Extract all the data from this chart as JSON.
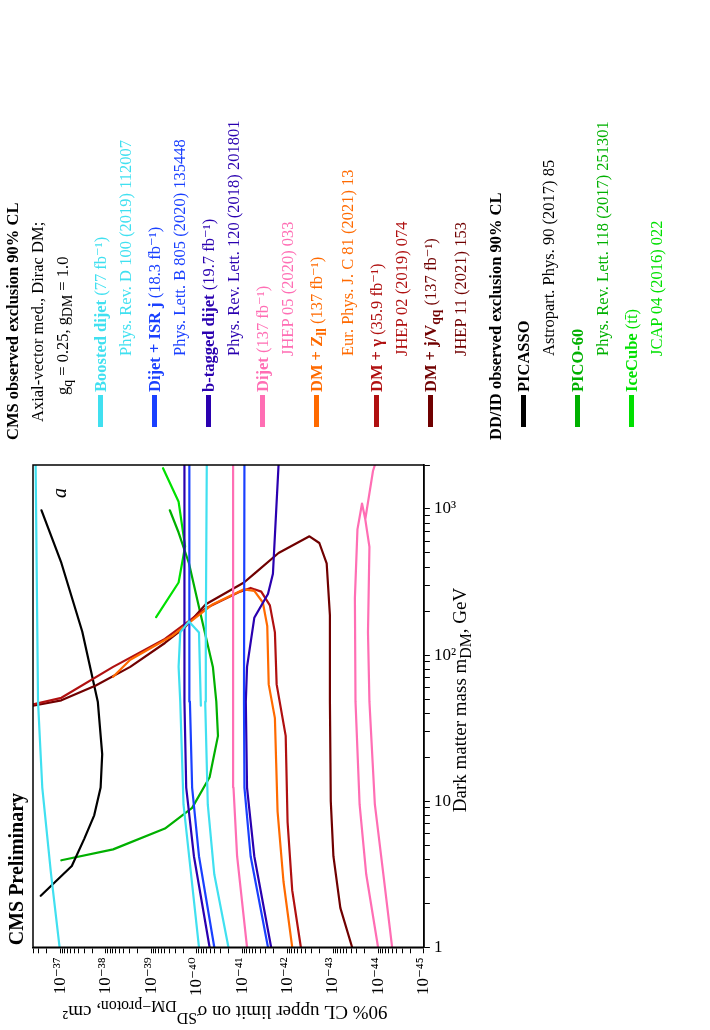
{
  "chart_data": {
    "type": "line",
    "log": "xy",
    "legend": "right",
    "legend_title": "CMS observed exclusion 90% CL\nAxial-vector med., Dirac DM;\ng$_{q}$ = 0.25, g$_{DM}$ = 1.0",
    "xlabel": "90% CL upper limit on σ$^{SD}$$_{DM−proton}$, cm²",
    "ylabel": "Dark matter mass m$_{DM}$, GeV",
    "annotations": [
      "CMS Preliminary",
      "a",
      "DD/ID observed exclusion 90% CL"
    ],
    "xlim": [
      4e-37,
      1e-45
    ],
    "ylim": [
      1,
      2000
    ],
    "xticks": [
      {
        "value": 1e-45,
        "label": "10⁻⁴⁵"
      },
      {
        "value": 2e-45,
        "label": null
      },
      {
        "value": 3e-45,
        "label": null
      },
      {
        "value": 4e-45,
        "label": null
      },
      {
        "value": 5e-45,
        "label": null
      },
      {
        "value": 6e-45,
        "label": null
      },
      {
        "value": 7e-45,
        "label": null
      },
      {
        "value": 8e-45,
        "label": null
      },
      {
        "value": 9e-45,
        "label": null
      },
      {
        "value": 1e-44,
        "label": "10⁻⁴⁴"
      },
      {
        "value": 2e-44,
        "label": null
      },
      {
        "value": 3e-44,
        "label": null
      },
      {
        "value": 4e-44,
        "label": null
      },
      {
        "value": 5e-44,
        "label": null
      },
      {
        "value": 6e-44,
        "label": null
      },
      {
        "value": 7e-44,
        "label": null
      },
      {
        "value": 8e-44,
        "label": null
      },
      {
        "value": 9e-44,
        "label": null
      },
      {
        "value": 1e-43,
        "label": "10⁻⁴³"
      },
      {
        "value": 2e-43,
        "label": null
      },
      {
        "value": 3e-43,
        "label": null
      },
      {
        "value": 4e-43,
        "label": null
      },
      {
        "value": 5e-43,
        "label": null
      },
      {
        "value": 6e-43,
        "label": null
      },
      {
        "value": 7e-43,
        "label": null
      },
      {
        "value": 8e-43,
        "label": null
      },
      {
        "value": 9e-43,
        "label": null
      },
      {
        "value": 1e-42,
        "label": "10⁻⁴²"
      },
      {
        "value": 2e-42,
        "label": null
      },
      {
        "value": 3e-42,
        "label": null
      },
      {
        "value": 4e-42,
        "label": null
      },
      {
        "value": 5e-42,
        "label": null
      },
      {
        "value": 6e-42,
        "label": null
      },
      {
        "value": 7e-42,
        "label": null
      },
      {
        "value": 8e-42,
        "label": null
      },
      {
        "value": 9e-42,
        "label": null
      },
      {
        "value": 1e-41,
        "label": "10⁻⁴¹"
      },
      {
        "value": 2e-41,
        "label": null
      },
      {
        "value": 3e-41,
        "label": null
      },
      {
        "value": 4e-41,
        "label": null
      },
      {
        "value": 5e-41,
        "label": null
      },
      {
        "value": 6e-41,
        "label": null
      },
      {
        "value": 7e-41,
        "label": null
      },
      {
        "value": 8e-41,
        "label": null
      },
      {
        "value": 9e-41,
        "label": null
      },
      {
        "value": 1e-40,
        "label": "10⁻⁴⁰"
      },
      {
        "value": 2e-40,
        "label": null
      },
      {
        "value": 3e-40,
        "label": null
      },
      {
        "value": 4e-40,
        "label": null
      },
      {
        "value": 5e-40,
        "label": null
      },
      {
        "value": 6e-40,
        "label": null
      },
      {
        "value": 7e-40,
        "label": null
      },
      {
        "value": 8e-40,
        "label": null
      },
      {
        "value": 9e-40,
        "label": null
      },
      {
        "value": 1e-39,
        "label": "10⁻³⁹"
      },
      {
        "value": 2e-39,
        "label": null
      },
      {
        "value": 3e-39,
        "label": null
      },
      {
        "value": 4e-39,
        "label": null
      },
      {
        "value": 5e-39,
        "label": null
      },
      {
        "value": 6e-39,
        "label": null
      },
      {
        "value": 7e-39,
        "label": null
      },
      {
        "value": 8e-39,
        "label": null
      },
      {
        "value": 9e-39,
        "label": null
      },
      {
        "value": 1e-38,
        "label": "10⁻³⁸"
      },
      {
        "value": 2e-38,
        "label": null
      },
      {
        "value": 3e-38,
        "label": null
      },
      {
        "value": 4e-38,
        "label": null
      },
      {
        "value": 5e-38,
        "label": null
      },
      {
        "value": 6e-38,
        "label": null
      },
      {
        "value": 7e-38,
        "label": null
      },
      {
        "value": 8e-38,
        "label": null
      },
      {
        "value": 9e-38,
        "label": null
      },
      {
        "value": 1e-37,
        "label": "10⁻³⁷"
      },
      {
        "value": 2e-37,
        "label": null
      },
      {
        "value": 3e-37,
        "label": null
      },
      {
        "value": 4e-37,
        "label": null
      }
    ],
    "yticks": [
      1,
      {
        "value": 2,
        "label": null
      },
      {
        "value": 3,
        "label": null
      },
      {
        "value": 4,
        "label": null
      },
      {
        "value": 5,
        "label": null
      },
      {
        "value": 6,
        "label": null
      },
      {
        "value": 7,
        "label": null
      },
      {
        "value": 8,
        "label": null
      },
      {
        "value": 9,
        "label": null
      },
      10,
      {
        "value": 20,
        "label": null
      },
      {
        "value": 30,
        "label": null
      },
      {
        "value": 40,
        "label": null
      },
      {
        "value": 50,
        "label": null
      },
      {
        "value": 60,
        "label": null
      },
      {
        "value": 70,
        "label": null
      },
      {
        "value": 80,
        "label": null
      },
      {
        "value": 90,
        "label": null
      },
      {
        "value": 100,
        "label": "10²"
      },
      {
        "value": 200,
        "label": null
      },
      {
        "value": 300,
        "label": null
      },
      {
        "value": 400,
        "label": null
      },
      {
        "value": 500,
        "label": null
      },
      {
        "value": 600,
        "label": null
      },
      {
        "value": 700,
        "label": null
      },
      {
        "value": 800,
        "label": null
      },
      {
        "value": 900,
        "label": null
      },
      {
        "value": 1000,
        "label": "10³"
      },
      {
        "value": 2000,
        "label": null
      }
    ],
    "series": [
      {
        "name": "Boosted dijet (77 fb⁻¹)\nPhys. Rev. D 100 (2019) 112007",
        "color": "#40e0f0",
        "x": [
          1.04e-37,
          1.6e-37,
          2.5e-37,
          3.1e-37,
          3.5e-37,
          null,
          2e-41,
          4.1e-41,
          5.7e-41,
          6.5e-41,
          6.3e-41,
          6e-41,
          null,
          8.9e-41,
          1.95e-40,
          2.3e-40,
          2.5e-40,
          2.3e-40,
          1.48e-40,
          8.9e-41,
          8.1e-41
        ],
        "values": [
          1,
          3.16,
          12.4,
          48,
          2000,
          null,
          1,
          3.16,
          9.5,
          48,
          143,
          2000,
          null,
          1,
          9.5,
          48,
          83,
          143,
          170,
          143,
          45
        ]
      },
      {
        "name": "Dijet + ISR j (18.3 fb⁻¹)\nPhys. Lett. B 805 (2020) 135448",
        "color": "#1a40ff",
        "x": [
          4.1e-41,
          8.9e-41,
          1.26e-40,
          1.41e-40,
          1.45e-40,
          null,
          2.7e-42,
          6.5e-42,
          8.9e-42,
          9.1e-42,
          8.9e-42
        ],
        "values": [
          1,
          4.2,
          12.4,
          48,
          2000,
          null,
          1,
          4.2,
          12.4,
          48,
          2000
        ]
      },
      {
        "name": "b-tagged dijet (19.7 fb⁻¹)\nPhys. Rev. Lett. 120 (2018) 201801",
        "color": "#2a00b0",
        "x": [
          5.2e-41,
          1.15e-40,
          1.7e-40,
          1.86e-40,
          1.86e-40,
          null,
          2.3e-42,
          5.4e-42,
          7.8e-42,
          8.3e-42,
          7.8e-42,
          5.4e-42,
          2.7e-42,
          2.1e-42,
          1.58e-42
        ],
        "values": [
          1,
          4.2,
          12.4,
          48,
          2000,
          null,
          1,
          4.2,
          12.4,
          48,
          83,
          180,
          262,
          360,
          2000
        ]
      },
      {
        "name": "Dijet (137 fb⁻¹)\nJHEP 05 (2020) 033",
        "color": "#ff6eb4",
        "x": [
          7.8e-42,
          1.29e-41,
          1.55e-41,
          1.58e-41,
          null,
          1.02e-44,
          1.86e-44,
          2.6e-44,
          3.2e-44,
          3.3e-44,
          2.9e-44,
          2.3e-44,
          1.95e-44,
          1.58e-44,
          1.7e-44,
          1.58e-44,
          1.2e-44,
          7.8e-45,
          5e-45,
          null,
          1.95e-44,
          1.32e-44,
          1.2e-44
        ],
        "values": [
          1,
          4.2,
          12.4,
          2000,
          null,
          1,
          3.16,
          9.5,
          48,
          245,
          725,
          1090,
          850,
          550,
          143,
          48,
          9.5,
          3.16,
          1,
          null,
          850,
          1820,
          2000
        ]
      },
      {
        "name": "DM + Z$_{ll}$ (137 fb⁻¹)\nEur. Phys. J. C 81 (2021) 13",
        "color": "#ff6a00",
        "x": [
          7.9e-43,
          1.23e-42,
          1.66e-42,
          1.9e-42,
          2.6e-42,
          2.8e-42,
          3.5e-42,
          5.4e-42,
          9.1e-42,
          4.4e-41,
          3.5e-40,
          2.9e-39,
          6.9e-39
        ],
        "values": [
          1,
          2.82,
          8.5,
          37,
          63,
          158,
          229,
          275,
          282,
          223,
          135,
          93,
          71
        ]
      },
      {
        "name": "DM + γ (35.9 fb⁻¹)\nJHEP 02 (2019) 074",
        "color": "#b01010",
        "x": [
          5.1e-43,
          7.9e-43,
          1e-42,
          1.1e-42,
          1.74e-42,
          1.9e-42,
          2.45e-42,
          3.8e-42,
          6.5e-42,
          1.1e-41,
          6.3e-41,
          5e-40,
          6.9e-39,
          9.5e-38,
          4e-37
        ],
        "values": [
          1,
          2.45,
          7.2,
          28,
          63,
          143,
          219,
          272,
          288,
          272,
          209,
          129,
          83,
          51,
          46
        ]
      },
      {
        "name": "DM + j/V$_{qq}$ (137 fb⁻¹)\nJHEP 11 (2021) 153",
        "color": "#700000",
        "x": [
          3.8e-44,
          6.9e-44,
          9.8e-44,
          1.12e-43,
          1.17e-43,
          1.17e-43,
          1.38e-43,
          2e-43,
          3.3e-43,
          1.58e-42,
          9.1e-42,
          6.3e-41,
          1.78e-40,
          5e-40,
          2.9e-39,
          1.66e-38,
          9.5e-38,
          4e-37
        ],
        "values": [
          1,
          1.86,
          4.2,
          10,
          48,
          187,
          425,
          585,
          650,
          500,
          314,
          223,
          156,
          121,
          83,
          62,
          49,
          45
        ]
      },
      {
        "name": "PICASSO\nAstropart. Phys. 90 (2017) 85",
        "color": "#000000",
        "x": [
          2.7e-37,
          5.6e-38,
          3e-38,
          1.8e-38,
          1.3e-38,
          1.2e-38,
          1.5e-38,
          3.3e-38,
          9.5e-38,
          2.6e-37
        ],
        "values": [
          2.25,
          3.6,
          5.5,
          8,
          12.4,
          21,
          48,
          145,
          427,
          980
        ]
      },
      {
        "name": "PICO-60\nPhys. Rev. Lett. 118 (2017) 251301",
        "color": "#00b000",
        "x": [
          9.5e-38,
          6.9e-39,
          5e-40,
          1.26e-40,
          5.2e-41,
          3.4e-41,
          3.7e-41,
          4.4e-41,
          8.1e-41,
          1.48e-40,
          2.5e-40,
          3.9e-40
        ],
        "values": [
          3.94,
          4.68,
          6.5,
          9.0,
          14.6,
          28,
          48,
          83,
          187,
          425,
          690,
          980
        ]
      },
      {
        "name": "IceCube (tt̄)\nJCAP 04 (2016) 022",
        "color": "#00e000",
        "x": [
          7.8e-40,
          2.5e-40,
          1.8e-40,
          2.5e-40,
          5.5e-40
        ],
        "values": [
          182,
          314,
          555,
          1120,
          1900
        ]
      }
    ]
  }
}
